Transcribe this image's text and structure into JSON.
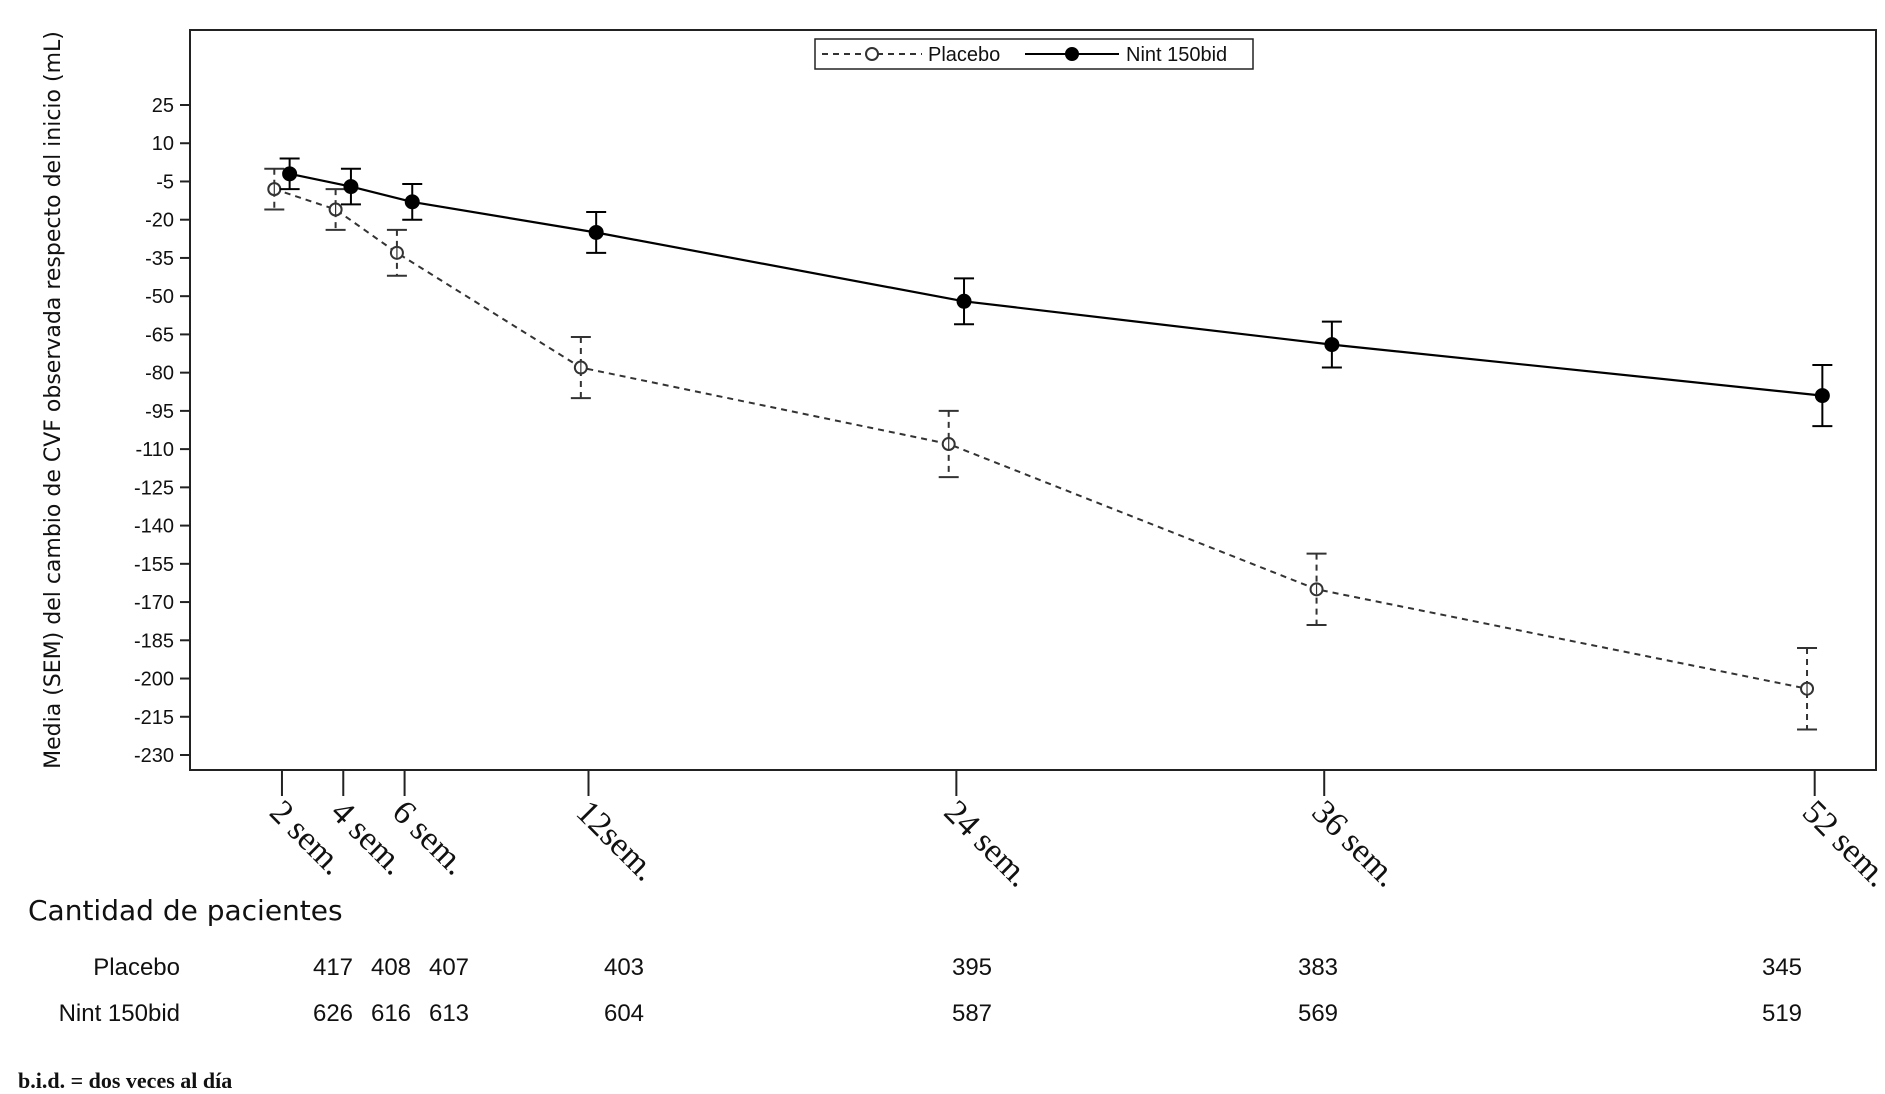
{
  "chart_data": {
    "type": "line",
    "ylabel": "Media (SEM) del cambio de CVF observada respecto del inicio (mL)",
    "xlabel": "",
    "yticks": [
      25,
      10,
      -5,
      -20,
      -35,
      -50,
      -65,
      -80,
      -95,
      -110,
      -125,
      -140,
      -155,
      -170,
      -185,
      -200,
      -215,
      -230
    ],
    "ylim": [
      -235,
      50
    ],
    "x": [
      2,
      4,
      6,
      12,
      24,
      36,
      52
    ],
    "xlim": [
      -1,
      54
    ],
    "xtick_labels": [
      "2 sem.",
      "4 sem.",
      "6 sem.",
      "12sem.",
      "24 sem.",
      "36 sem.",
      "52 sem."
    ],
    "grid": false,
    "legend_position": "top-center",
    "series": [
      {
        "name": "Placebo",
        "style": "dashed",
        "marker": "open-circle",
        "color": "#333333",
        "values": [
          -8,
          -16,
          -33,
          -78,
          -108,
          -165,
          -204
        ],
        "sem": [
          8,
          8,
          9,
          12,
          13,
          14,
          16
        ],
        "x_offset": -0.25
      },
      {
        "name": "Nint 150bid",
        "style": "solid",
        "marker": "filled-circle",
        "color": "#000000",
        "values": [
          -2,
          -7,
          -13,
          -25,
          -52,
          -69,
          -89
        ],
        "sem": [
          6,
          7,
          7,
          8,
          9,
          9,
          12
        ],
        "x_offset": 0.25
      }
    ]
  },
  "patients": {
    "title": "Cantidad de pacientes",
    "rows": [
      {
        "label": "Placebo",
        "counts": [
          "417",
          "408",
          "407",
          "403",
          "395",
          "383",
          "345"
        ]
      },
      {
        "label": "Nint 150bid",
        "counts": [
          "626",
          "616",
          "613",
          "604",
          "587",
          "569",
          "519"
        ]
      }
    ]
  },
  "footnote": "b.i.d. = dos veces al día"
}
